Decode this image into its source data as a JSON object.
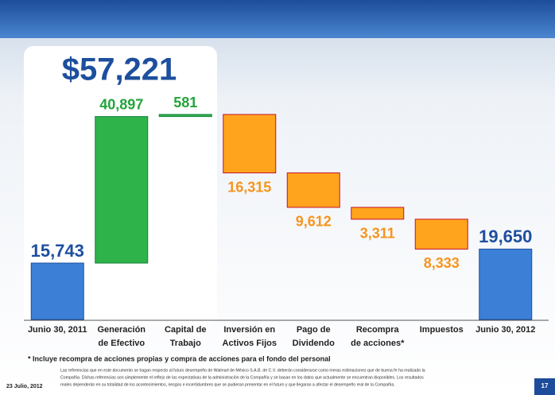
{
  "chart_data": {
    "type": "waterfall",
    "annotation": "$57,221",
    "categories": [
      [
        "Junio 30, 2011"
      ],
      [
        "Generación",
        "de Efectivo"
      ],
      [
        "Capital de",
        "Trabajo"
      ],
      [
        "Inversión en",
        "Activos Fijos"
      ],
      [
        "Pago de",
        "Dividendo"
      ],
      [
        "Recompra",
        "de acciones*"
      ],
      [
        "Impuestos"
      ],
      [
        "Junio 30, 2012"
      ]
    ],
    "values": [
      15743,
      40897,
      581,
      -16315,
      -9612,
      -3311,
      -8333,
      19650
    ],
    "value_labels": [
      "15,743",
      "40,897",
      "581",
      "16,315",
      "9,612",
      "3,311",
      "8,333",
      "19,650"
    ],
    "measure": [
      "absolute",
      "relative",
      "relative",
      "relative",
      "relative",
      "relative",
      "relative",
      "absolute"
    ],
    "colors": [
      "#3b80d6",
      "#2db34a",
      "#2db34a",
      "#ffa41c",
      "#ffa41c",
      "#ffa41c",
      "#ffa41c",
      "#3b80d6"
    ],
    "label_colors": [
      "#1d4f9e",
      "#23a33c",
      "#23a33c",
      "#f7941d",
      "#f7941d",
      "#f7941d",
      "#f7941d",
      "#1d4f9e"
    ],
    "footnote": "* Incluye recompra de acciones propias y compra de acciones para el fondo del personal",
    "disclaimer": [
      "Las referencias que en este documento se hagan respecto al futuro desempeño de Walmart de México S.A.B. de C.V. deberán considerarse como meras estimaciones que de buena fe ha realizado la",
      "Compañía. Dichas referencias son simplemente el reflejo de las expectativas de la administración de la Compañía y se basan en los datos que actualmente se encuentran disponibles. Los resultados",
      "reales dependerán en su totalidad de los acontecimientos, riesgos e incertidumbres que se pudieran presentar en el futuro y que llegaran a afectar el desempeño real de la Compañía."
    ],
    "date": "23 Julio, 2012",
    "page": "17"
  }
}
